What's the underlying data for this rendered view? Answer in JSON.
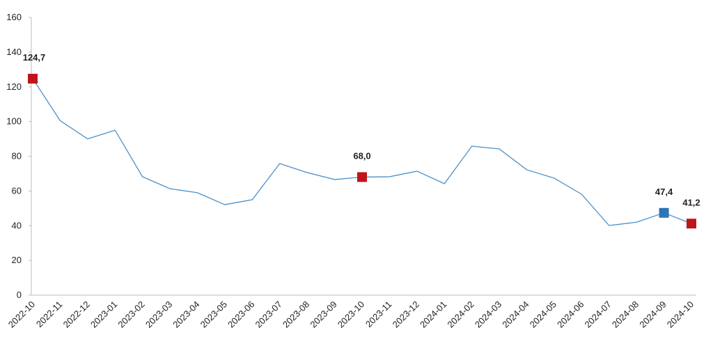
{
  "chart_data": {
    "type": "line",
    "categories": [
      "2022-10",
      "2022-11",
      "2022-12",
      "2023-01",
      "2023-02",
      "2023-03",
      "2023-04",
      "2023-05",
      "2023-06",
      "2023-07",
      "2023-08",
      "2023-09",
      "2023-10",
      "2023-11",
      "2023-12",
      "2024-01",
      "2024-02",
      "2024-03",
      "2024-04",
      "2024-05",
      "2024-06",
      "2024-07",
      "2024-08",
      "2024-09",
      "2024-10"
    ],
    "values": [
      124.7,
      100.5,
      90,
      95,
      68.2,
      61.3,
      59,
      52.1,
      55,
      75.8,
      70.6,
      66.6,
      68.0,
      68.2,
      71.4,
      64.2,
      85.8,
      84.2,
      72.2,
      67.4,
      58.1,
      40.1,
      42,
      47.4,
      41.2
    ],
    "value_labels": [
      "124,7",
      null,
      null,
      null,
      null,
      null,
      null,
      null,
      null,
      null,
      null,
      null,
      "68,0",
      null,
      null,
      null,
      null,
      null,
      null,
      null,
      null,
      null,
      null,
      "47,4",
      "41,2"
    ],
    "marker_colors": [
      "#c0141c",
      null,
      null,
      null,
      null,
      null,
      null,
      null,
      null,
      null,
      null,
      null,
      "#c0141c",
      null,
      null,
      null,
      null,
      null,
      null,
      null,
      null,
      null,
      null,
      "#2e75b6",
      "#c0141c"
    ],
    "color": "#4a90c8",
    "ylim": [
      0,
      160
    ],
    "yticks": [
      0,
      20,
      40,
      60,
      80,
      100,
      120,
      140,
      160
    ],
    "grid": false
  }
}
